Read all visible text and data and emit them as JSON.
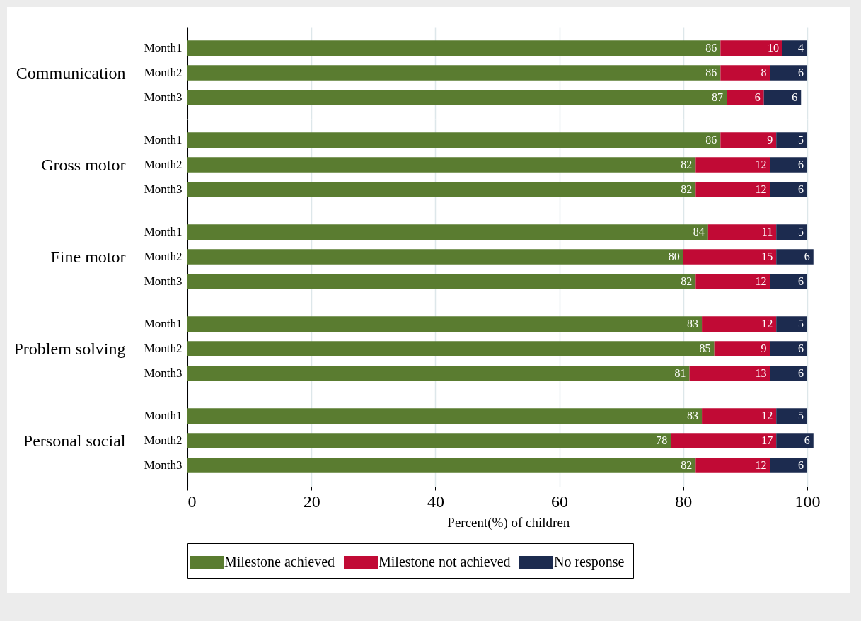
{
  "chart_data": [
    {
      "type": "bar",
      "orientation": "horizontal",
      "stacked": true,
      "ylabel": "Communication",
      "categories": [
        "Month1",
        "Month2",
        "Month3"
      ],
      "series": [
        {
          "color": "#5a7c30",
          "values": [
            86,
            86,
            87
          ]
        },
        {
          "color": "#c10a35",
          "values": [
            10,
            8,
            6
          ]
        },
        {
          "color": "#1c2b4f",
          "values": [
            4,
            6,
            6
          ]
        }
      ],
      "xlim": [
        0,
        100
      ],
      "xticks": [
        0,
        20,
        40,
        60,
        80,
        100
      ],
      "grid": "x",
      "data_labels": true,
      "tick_labels": "y"
    },
    {
      "type": "bar",
      "orientation": "horizontal",
      "stacked": true,
      "ylabel": "Gross motor",
      "categories": [
        "Month1",
        "Month2",
        "Month3"
      ],
      "series": [
        {
          "color": "#5a7c30",
          "values": [
            86,
            82,
            82
          ]
        },
        {
          "color": "#c10a35",
          "values": [
            9,
            12,
            12
          ]
        },
        {
          "color": "#1c2b4f",
          "values": [
            5,
            6,
            6
          ]
        }
      ],
      "xlim": [
        0,
        100
      ],
      "xticks": [
        0,
        20,
        40,
        60,
        80,
        100
      ],
      "grid": "x",
      "data_labels": true,
      "tick_labels": "y"
    },
    {
      "type": "bar",
      "orientation": "horizontal",
      "stacked": true,
      "ylabel": "Fine motor",
      "categories": [
        "Month1",
        "Month2",
        "Month3"
      ],
      "series": [
        {
          "color": "#5a7c30",
          "values": [
            84,
            80,
            82
          ]
        },
        {
          "color": "#c10a35",
          "values": [
            11,
            15,
            12
          ]
        },
        {
          "color": "#1c2b4f",
          "values": [
            5,
            6,
            6
          ]
        }
      ],
      "xlim": [
        0,
        101
      ],
      "xticks": [
        0,
        20,
        40,
        60,
        80,
        100
      ],
      "grid": "x",
      "data_labels": true,
      "tick_labels": "y"
    },
    {
      "type": "bar",
      "orientation": "horizontal",
      "stacked": true,
      "ylabel": "Problem solving",
      "categories": [
        "Month1",
        "Month2",
        "Month3"
      ],
      "series": [
        {
          "color": "#5a7c30",
          "values": [
            83,
            85,
            81
          ]
        },
        {
          "color": "#c10a35",
          "values": [
            12,
            9,
            13
          ]
        },
        {
          "color": "#1c2b4f",
          "values": [
            5,
            6,
            6
          ]
        }
      ],
      "xlim": [
        0,
        100
      ],
      "xticks": [
        0,
        20,
        40,
        60,
        80,
        100
      ],
      "grid": "x",
      "data_labels": true,
      "tick_labels": "y"
    },
    {
      "type": "bar",
      "orientation": "horizontal",
      "stacked": true,
      "ylabel": "Personal social",
      "xlabel": "Percent(%) of children",
      "categories": [
        "Month1",
        "Month2",
        "Month3"
      ],
      "series": [
        {
          "name": "Milestone achieved",
          "color": "#5a7c30",
          "values": [
            83,
            78,
            82
          ]
        },
        {
          "name": "Milestone not achieved",
          "color": "#c10a35",
          "values": [
            12,
            17,
            12
          ]
        },
        {
          "name": "No response",
          "color": "#1c2b4f",
          "values": [
            5,
            6,
            6
          ]
        }
      ],
      "xlim": [
        0,
        103.5
      ],
      "xticks": [
        0,
        20,
        40,
        60,
        80,
        100
      ],
      "grid": "x",
      "data_labels": true,
      "legend": "bottom"
    }
  ]
}
